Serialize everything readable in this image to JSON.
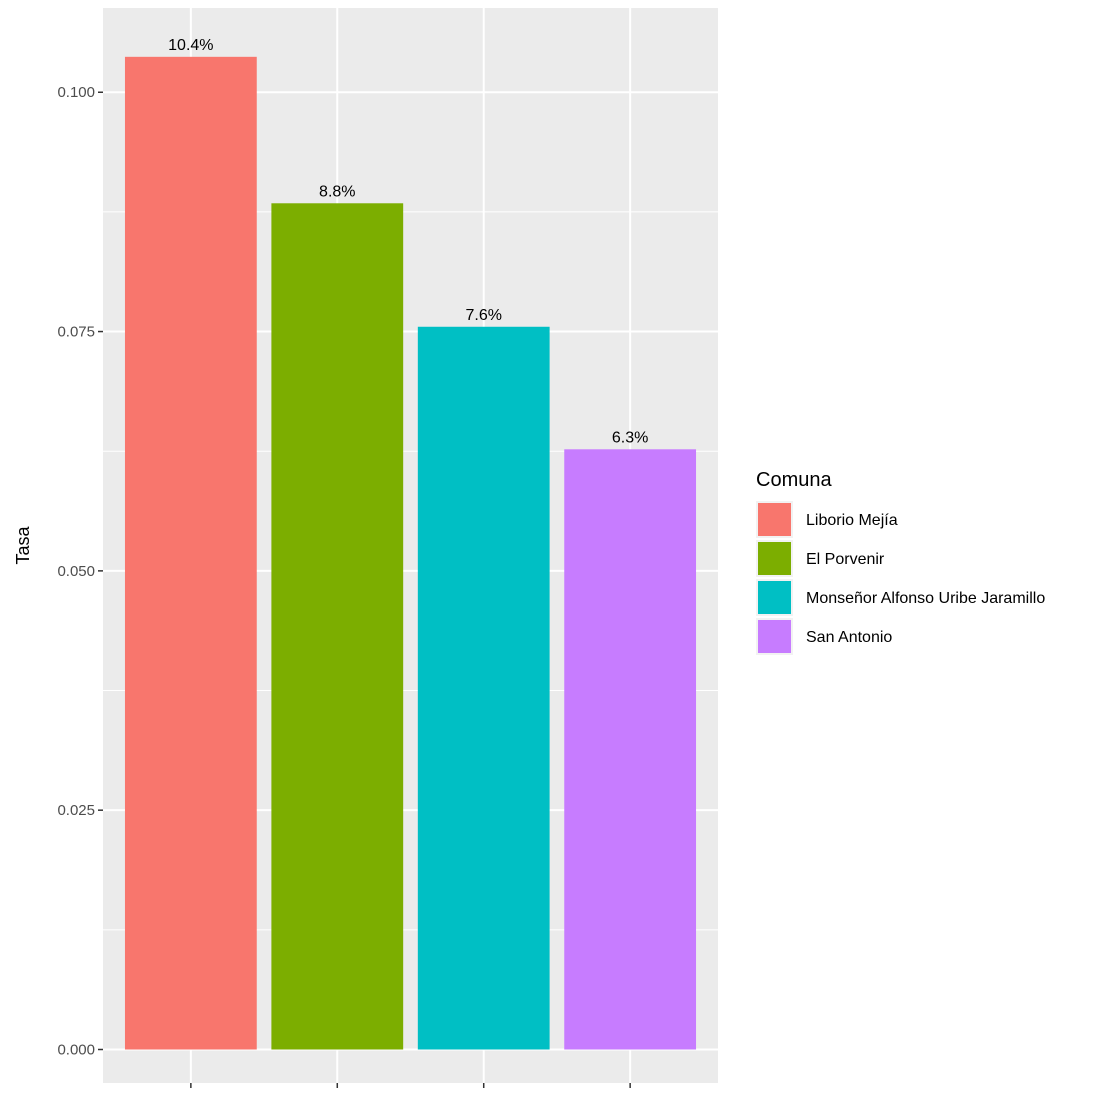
{
  "chart_data": {
    "type": "bar",
    "categories": [
      "Liborio Mejía",
      "El Porvenir",
      "Monseñor Alfonso Uribe Jaramillo",
      "San Antonio"
    ],
    "values": [
      0.1037,
      0.0884,
      0.0755,
      0.0627
    ],
    "data_labels": [
      "10.4%",
      "8.8%",
      "7.6%",
      "6.3%"
    ],
    "colors": [
      "#F8766D",
      "#7CAE00",
      "#00BFC4",
      "#C77CFF"
    ],
    "title": "",
    "xlabel": "",
    "ylabel": "Tasa",
    "ylim": [
      -0.0035,
      0.1088
    ],
    "yticks": [
      0.0,
      0.025,
      0.05,
      0.075,
      0.1
    ],
    "ytick_labels": [
      "0.000",
      "0.025",
      "0.050",
      "0.075",
      "0.100"
    ],
    "grid": true,
    "legend": {
      "title": "Comuna",
      "placement": "right",
      "entries": [
        "Liborio Mejía",
        "El Porvenir",
        "Monseñor Alfonso Uribe Jaramillo",
        "San Antonio"
      ]
    }
  }
}
